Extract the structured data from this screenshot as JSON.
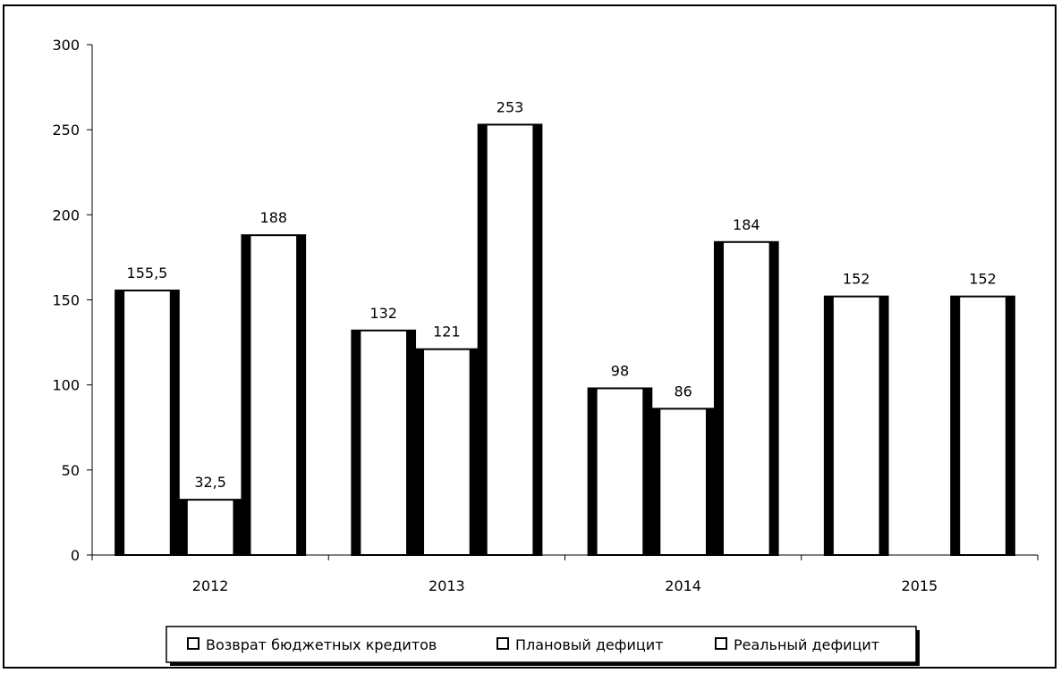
{
  "chart_data": {
    "type": "bar",
    "categories": [
      "2012",
      "2013",
      "2014",
      "2015"
    ],
    "series": [
      {
        "name": "Возврат бюджетных кредитов",
        "values": [
          155.5,
          132,
          98,
          152
        ],
        "labels": [
          "155,5",
          "132",
          "98",
          "152"
        ]
      },
      {
        "name": "Плановый дефицит",
        "values": [
          32.5,
          121,
          86,
          null
        ],
        "labels": [
          "32,5",
          "121",
          "86",
          ""
        ]
      },
      {
        "name": "Реальный дефицит",
        "values": [
          188,
          253,
          184,
          152
        ],
        "labels": [
          "188",
          "253",
          "184",
          "152"
        ]
      }
    ],
    "yticks": [
      "0",
      "50",
      "100",
      "150",
      "200",
      "250",
      "300"
    ],
    "ylim": [
      0,
      300
    ],
    "grid": false,
    "legend_position": "bottom",
    "bar_fill": "#ffffff",
    "bar_edge": "#000000"
  }
}
